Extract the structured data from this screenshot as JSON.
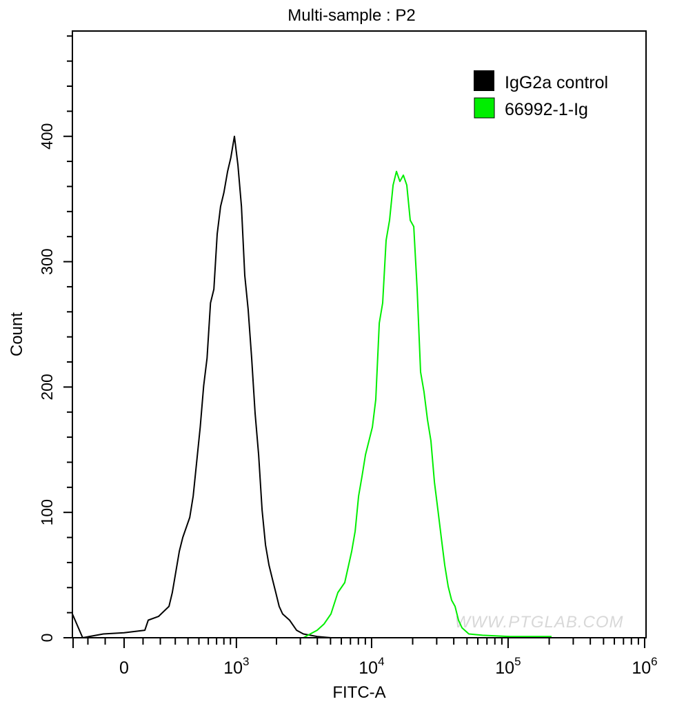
{
  "chart_data": {
    "type": "line",
    "title": "Multi-sample : P2",
    "xlabel": "FITC-A",
    "ylabel": "Count",
    "x_scale": "biexponential",
    "xlim": [
      -300,
      1000000
    ],
    "ylim": [
      0,
      484
    ],
    "grid": false,
    "x_ticks": [
      {
        "value": 0,
        "base": "0",
        "exp": ""
      },
      {
        "value": 1000,
        "base": "10",
        "exp": "3"
      },
      {
        "value": 10000,
        "base": "10",
        "exp": "4"
      },
      {
        "value": 100000,
        "base": "10",
        "exp": "5"
      },
      {
        "value": 1000000,
        "base": "10",
        "exp": "6"
      }
    ],
    "y_ticks": [
      0,
      100,
      200,
      300,
      400
    ],
    "legend_placement": "top-right",
    "watermark": "WWW.PTGLAB.COM",
    "series": [
      {
        "name": "IgG2a control",
        "color": "#000000",
        "points": [
          [
            -304,
            19
          ],
          [
            -233,
            0
          ],
          [
            -110,
            3
          ],
          [
            0,
            4
          ],
          [
            110,
            6
          ],
          [
            129,
            14
          ],
          [
            189,
            17
          ],
          [
            256,
            25
          ],
          [
            279,
            36
          ],
          [
            330,
            69
          ],
          [
            357,
            80
          ],
          [
            415,
            96
          ],
          [
            446,
            113
          ],
          [
            513,
            168
          ],
          [
            549,
            201
          ],
          [
            586,
            223
          ],
          [
            625,
            267
          ],
          [
            666,
            278
          ],
          [
            708,
            322
          ],
          [
            753,
            344
          ],
          [
            800,
            355
          ],
          [
            855,
            372
          ],
          [
            906,
            383
          ],
          [
            966,
            400
          ],
          [
            1028,
            377
          ],
          [
            1093,
            344
          ],
          [
            1158,
            289
          ],
          [
            1229,
            262
          ],
          [
            1306,
            223
          ],
          [
            1386,
            179
          ],
          [
            1472,
            146
          ],
          [
            1562,
            102
          ],
          [
            1657,
            74
          ],
          [
            1759,
            58
          ],
          [
            1863,
            47
          ],
          [
            1977,
            36
          ],
          [
            2094,
            25
          ],
          [
            2221,
            19
          ],
          [
            2501,
            14
          ],
          [
            2812,
            6
          ],
          [
            3157,
            3
          ],
          [
            3989,
            1
          ],
          [
            5036,
            0
          ]
        ]
      },
      {
        "name": "66992-1-Ig",
        "color": "#00ee00",
        "points": [
          [
            3157,
            0
          ],
          [
            3551,
            3
          ],
          [
            3989,
            6
          ],
          [
            4481,
            11
          ],
          [
            5036,
            19
          ],
          [
            5658,
            36
          ],
          [
            6357,
            44
          ],
          [
            7146,
            69
          ],
          [
            7577,
            85
          ],
          [
            8033,
            113
          ],
          [
            8516,
            129
          ],
          [
            9024,
            146
          ],
          [
            10133,
            168
          ],
          [
            10734,
            190
          ],
          [
            11381,
            251
          ],
          [
            12058,
            267
          ],
          [
            12782,
            317
          ],
          [
            13549,
            333
          ],
          [
            14362,
            361
          ],
          [
            15215,
            372
          ],
          [
            16124,
            364
          ],
          [
            17088,
            369
          ],
          [
            18110,
            361
          ],
          [
            19188,
            333
          ],
          [
            20359,
            328
          ],
          [
            21560,
            278
          ],
          [
            22854,
            212
          ],
          [
            24209,
            196
          ],
          [
            25687,
            174
          ],
          [
            27196,
            157
          ],
          [
            28860,
            124
          ],
          [
            30584,
            102
          ],
          [
            32402,
            80
          ],
          [
            34342,
            58
          ],
          [
            36406,
            41
          ],
          [
            38562,
            30
          ],
          [
            40872,
            25
          ],
          [
            43336,
            14
          ],
          [
            45923,
            8
          ],
          [
            51559,
            3
          ],
          [
            64988,
            2
          ],
          [
            103488,
            1
          ],
          [
            208208,
            1
          ]
        ]
      }
    ]
  }
}
